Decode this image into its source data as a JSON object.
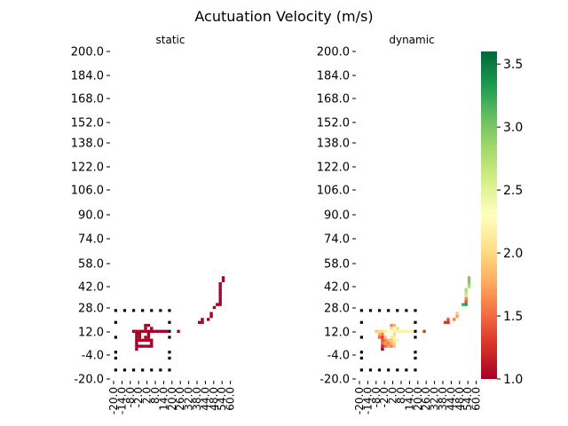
{
  "chart_data": {
    "type": "heatmap",
    "title": "Acutuation Velocity (m/s)",
    "y_ticks": [
      "200.0",
      "184.0",
      "168.0",
      "152.0",
      "138.0",
      "122.0",
      "106.0",
      "90.0",
      "74.0",
      "58.0",
      "42.0",
      "28.0",
      "12.0",
      "-4.0",
      "-20.0"
    ],
    "x_ticks": [
      "-20.0",
      "-14.0",
      "-8.0",
      "-2.0",
      "2.0",
      "8.0",
      "14.0",
      "20.0",
      "26.0",
      "32.0",
      "38.0",
      "44.0",
      "48.0",
      "54.0",
      "60.0"
    ],
    "x_range": [
      -20,
      62
    ],
    "y_range": [
      -20,
      200
    ],
    "colorbar": {
      "min": 1.0,
      "max": 3.6,
      "ticks": [
        "1.0",
        "1.5",
        "2.0",
        "2.5",
        "3.0",
        "3.5"
      ],
      "colors": [
        "#a50026",
        "#d73027",
        "#f46d43",
        "#fdae61",
        "#fee08b",
        "#ffffbf",
        "#d9ef8b",
        "#a6d96a",
        "#66bd63",
        "#1a9850",
        "#006837"
      ]
    },
    "markers": [
      {
        "x": -18,
        "y": 26
      },
      {
        "x": -12,
        "y": 26
      },
      {
        "x": -6,
        "y": 26
      },
      {
        "x": 0,
        "y": 26
      },
      {
        "x": 6,
        "y": 26
      },
      {
        "x": 12,
        "y": 26
      },
      {
        "x": 18,
        "y": 26
      },
      {
        "x": -18,
        "y": -14
      },
      {
        "x": -12,
        "y": -14
      },
      {
        "x": -6,
        "y": -14
      },
      {
        "x": 0,
        "y": -14
      },
      {
        "x": 6,
        "y": -14
      },
      {
        "x": 12,
        "y": -14
      },
      {
        "x": 18,
        "y": -14
      },
      {
        "x": -18,
        "y": 18
      },
      {
        "x": -18,
        "y": 8
      },
      {
        "x": -18,
        "y": -2
      },
      {
        "x": -18,
        "y": -6
      },
      {
        "x": 18,
        "y": 18
      },
      {
        "x": 18,
        "y": 12
      },
      {
        "x": 18,
        "y": 8
      },
      {
        "x": 18,
        "y": -2
      },
      {
        "x": 18,
        "y": -6
      }
    ],
    "panels": [
      {
        "title": "static",
        "cells": [
          {
            "x": -6,
            "y": 12,
            "v": 1.0
          },
          {
            "x": -4,
            "y": 12,
            "v": 1.0
          },
          {
            "x": -2,
            "y": 12,
            "v": 1.0
          },
          {
            "x": 0,
            "y": 12,
            "v": 1.0
          },
          {
            "x": 2,
            "y": 12,
            "v": 1.0
          },
          {
            "x": 4,
            "y": 12,
            "v": 1.0
          },
          {
            "x": 6,
            "y": 12,
            "v": 1.0
          },
          {
            "x": 8,
            "y": 12,
            "v": 1.0
          },
          {
            "x": 10,
            "y": 12,
            "v": 1.0
          },
          {
            "x": 12,
            "y": 12,
            "v": 1.0
          },
          {
            "x": 14,
            "y": 12,
            "v": 1.0
          },
          {
            "x": 16,
            "y": 12,
            "v": 1.0
          },
          {
            "x": 2,
            "y": 16,
            "v": 1.0
          },
          {
            "x": 4,
            "y": 16,
            "v": 1.0
          },
          {
            "x": 2,
            "y": 14,
            "v": 1.0
          },
          {
            "x": 6,
            "y": 14,
            "v": 1.0
          },
          {
            "x": -4,
            "y": 10,
            "v": 1.0
          },
          {
            "x": -2,
            "y": 10,
            "v": 1.0
          },
          {
            "x": 4,
            "y": 10,
            "v": 1.0
          },
          {
            "x": -4,
            "y": 8,
            "v": 1.0
          },
          {
            "x": -2,
            "y": 8,
            "v": 1.0
          },
          {
            "x": 2,
            "y": 8,
            "v": 1.0
          },
          {
            "x": 4,
            "y": 8,
            "v": 1.0
          },
          {
            "x": -4,
            "y": 6,
            "v": 1.0
          },
          {
            "x": -2,
            "y": 6,
            "v": 1.0
          },
          {
            "x": 0,
            "y": 6,
            "v": 1.0
          },
          {
            "x": 2,
            "y": 6,
            "v": 1.0
          },
          {
            "x": 4,
            "y": 6,
            "v": 1.0
          },
          {
            "x": 6,
            "y": 6,
            "v": 1.0
          },
          {
            "x": -4,
            "y": 4,
            "v": 1.0
          },
          {
            "x": 6,
            "y": 4,
            "v": 1.0
          },
          {
            "x": -4,
            "y": 2,
            "v": 1.0
          },
          {
            "x": -2,
            "y": 2,
            "v": 1.0
          },
          {
            "x": 0,
            "y": 2,
            "v": 1.0
          },
          {
            "x": 2,
            "y": 2,
            "v": 1.0
          },
          {
            "x": 4,
            "y": 2,
            "v": 1.0
          },
          {
            "x": 6,
            "y": 2,
            "v": 1.0
          },
          {
            "x": -4,
            "y": 0,
            "v": 1.0
          },
          {
            "x": 24,
            "y": 12,
            "v": 1.0
          },
          {
            "x": 38,
            "y": 18,
            "v": 1.0
          },
          {
            "x": 40,
            "y": 18,
            "v": 1.0
          },
          {
            "x": 40,
            "y": 20,
            "v": 1.0
          },
          {
            "x": 44,
            "y": 20,
            "v": 1.0
          },
          {
            "x": 46,
            "y": 22,
            "v": 1.0
          },
          {
            "x": 46,
            "y": 24,
            "v": 1.0
          },
          {
            "x": 48,
            "y": 28,
            "v": 1.0
          },
          {
            "x": 50,
            "y": 30,
            "v": 1.0
          },
          {
            "x": 52,
            "y": 30,
            "v": 1.0
          },
          {
            "x": 52,
            "y": 32,
            "v": 1.0
          },
          {
            "x": 52,
            "y": 34,
            "v": 1.0
          },
          {
            "x": 52,
            "y": 36,
            "v": 1.0
          },
          {
            "x": 52,
            "y": 38,
            "v": 1.0
          },
          {
            "x": 52,
            "y": 40,
            "v": 1.0
          },
          {
            "x": 52,
            "y": 42,
            "v": 1.0
          },
          {
            "x": 52,
            "y": 44,
            "v": 1.0
          },
          {
            "x": 54,
            "y": 46,
            "v": 1.0
          },
          {
            "x": 54,
            "y": 48,
            "v": 1.0
          }
        ]
      },
      {
        "title": "dynamic",
        "cells": [
          {
            "x": -8,
            "y": 12,
            "v": 1.9
          },
          {
            "x": -6,
            "y": 12,
            "v": 2.0
          },
          {
            "x": -4,
            "y": 12,
            "v": 2.0
          },
          {
            "x": -2,
            "y": 12,
            "v": 2.2
          },
          {
            "x": 0,
            "y": 12,
            "v": 2.3
          },
          {
            "x": 2,
            "y": 12,
            "v": 2.3
          },
          {
            "x": 4,
            "y": 12,
            "v": 2.2
          },
          {
            "x": 6,
            "y": 12,
            "v": 2.2
          },
          {
            "x": 8,
            "y": 12,
            "v": 2.2
          },
          {
            "x": 10,
            "y": 12,
            "v": 2.2
          },
          {
            "x": 12,
            "y": 12,
            "v": 2.2
          },
          {
            "x": 14,
            "y": 12,
            "v": 2.2
          },
          {
            "x": 16,
            "y": 12,
            "v": 2.2
          },
          {
            "x": 2,
            "y": 16,
            "v": 1.6
          },
          {
            "x": 4,
            "y": 16,
            "v": 1.8
          },
          {
            "x": 2,
            "y": 14,
            "v": 2.0
          },
          {
            "x": 6,
            "y": 14,
            "v": 2.0
          },
          {
            "x": -6,
            "y": 10,
            "v": 1.8
          },
          {
            "x": -4,
            "y": 10,
            "v": 1.6
          },
          {
            "x": 4,
            "y": 10,
            "v": 2.0
          },
          {
            "x": -6,
            "y": 8,
            "v": 1.5
          },
          {
            "x": -4,
            "y": 8,
            "v": 1.3
          },
          {
            "x": -2,
            "y": 8,
            "v": 1.9
          },
          {
            "x": 2,
            "y": 8,
            "v": 2.1
          },
          {
            "x": 4,
            "y": 8,
            "v": 2.2
          },
          {
            "x": -4,
            "y": 6,
            "v": 1.4
          },
          {
            "x": -2,
            "y": 6,
            "v": 1.6
          },
          {
            "x": 0,
            "y": 6,
            "v": 1.8
          },
          {
            "x": 2,
            "y": 6,
            "v": 1.9
          },
          {
            "x": 4,
            "y": 6,
            "v": 2.1
          },
          {
            "x": 6,
            "y": 6,
            "v": 2.2
          },
          {
            "x": -4,
            "y": 4,
            "v": 1.5
          },
          {
            "x": -2,
            "y": 4,
            "v": 1.7
          },
          {
            "x": 0,
            "y": 4,
            "v": 1.6
          },
          {
            "x": 2,
            "y": 4,
            "v": 1.8
          },
          {
            "x": 4,
            "y": 4,
            "v": 2.0
          },
          {
            "x": -4,
            "y": 2,
            "v": 1.2
          },
          {
            "x": -2,
            "y": 2,
            "v": 1.5
          },
          {
            "x": 0,
            "y": 2,
            "v": 1.7
          },
          {
            "x": 2,
            "y": 2,
            "v": 1.6
          },
          {
            "x": 4,
            "y": 2,
            "v": 1.9
          },
          {
            "x": -4,
            "y": 0,
            "v": 1.0
          },
          {
            "x": 24,
            "y": 12,
            "v": 1.3
          },
          {
            "x": 38,
            "y": 18,
            "v": 1.3
          },
          {
            "x": 40,
            "y": 18,
            "v": 1.2
          },
          {
            "x": 40,
            "y": 20,
            "v": 1.4
          },
          {
            "x": 44,
            "y": 20,
            "v": 1.6
          },
          {
            "x": 46,
            "y": 22,
            "v": 1.7
          },
          {
            "x": 46,
            "y": 24,
            "v": 1.9
          },
          {
            "x": 48,
            "y": 28,
            "v": 2.3
          },
          {
            "x": 50,
            "y": 30,
            "v": 3.2
          },
          {
            "x": 52,
            "y": 30,
            "v": 3.3
          },
          {
            "x": 52,
            "y": 32,
            "v": 1.4
          },
          {
            "x": 52,
            "y": 34,
            "v": 1.6
          },
          {
            "x": 52,
            "y": 36,
            "v": 2.6
          },
          {
            "x": 52,
            "y": 38,
            "v": 2.7
          },
          {
            "x": 52,
            "y": 40,
            "v": 2.8
          },
          {
            "x": 54,
            "y": 42,
            "v": 2.8
          },
          {
            "x": 54,
            "y": 44,
            "v": 2.9
          },
          {
            "x": 54,
            "y": 46,
            "v": 3.0
          },
          {
            "x": 54,
            "y": 48,
            "v": 3.0
          }
        ]
      }
    ]
  }
}
